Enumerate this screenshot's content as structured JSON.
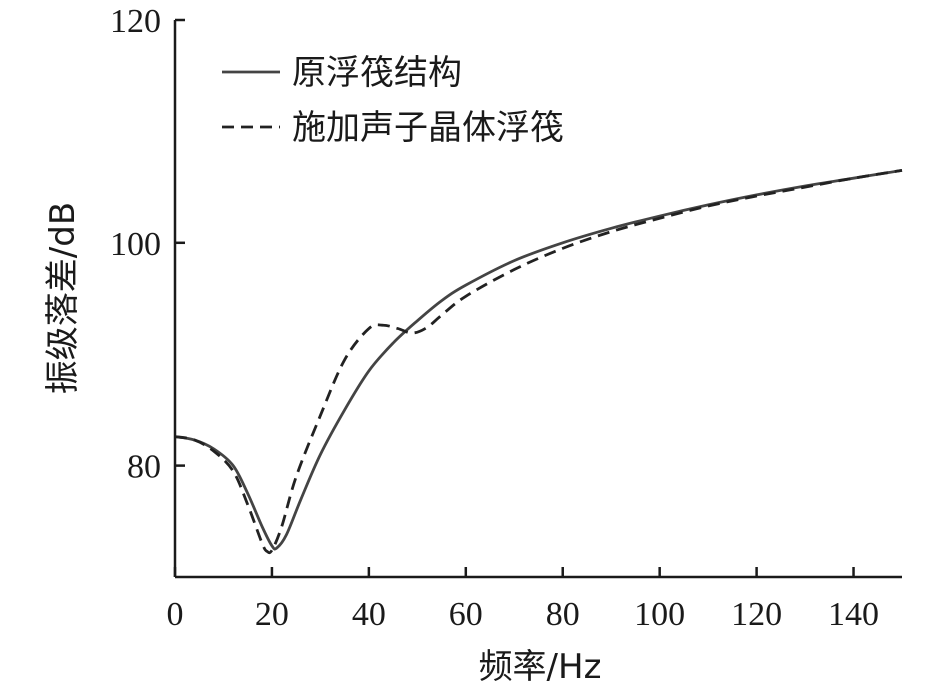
{
  "chart_data": {
    "type": "line",
    "xlabel": "频率/Hz",
    "ylabel": "振级落差/dB",
    "xlim": [
      0,
      150
    ],
    "ylim": [
      70,
      120
    ],
    "xticks": [
      "0",
      "20",
      "40",
      "60",
      "80",
      "100",
      "120",
      "140"
    ],
    "yticks": [
      "80",
      "100",
      "120"
    ],
    "grid": false,
    "legend_position": "top-left",
    "series": [
      {
        "name": "原浮筏结构",
        "style": "solid",
        "color": "#444444",
        "x": [
          0,
          4,
          8,
          12,
          15,
          18,
          20,
          21,
          23,
          26,
          30,
          35,
          40,
          45,
          50,
          55,
          60,
          70,
          80,
          90,
          100,
          110,
          120,
          130,
          140,
          150
        ],
        "y": [
          82.6,
          82.3,
          81.5,
          80.0,
          77.5,
          74.5,
          72.8,
          72.6,
          73.8,
          77.0,
          81.0,
          85.0,
          88.5,
          91.0,
          93.0,
          94.8,
          96.2,
          98.4,
          100.0,
          101.3,
          102.4,
          103.4,
          104.3,
          105.1,
          105.8,
          106.5
        ]
      },
      {
        "name": "施加声子晶体浮筏",
        "style": "dashed",
        "color": "#222222",
        "x": [
          0,
          4,
          8,
          12,
          15,
          18,
          19,
          20,
          22,
          25,
          30,
          35,
          40,
          43,
          46,
          49,
          52,
          55,
          60,
          70,
          80,
          90,
          100,
          110,
          120,
          130,
          140,
          150
        ],
        "y": [
          82.6,
          82.3,
          81.3,
          79.5,
          76.5,
          73.0,
          72.3,
          72.4,
          74.5,
          79.0,
          84.5,
          89.5,
          92.3,
          92.6,
          92.3,
          91.9,
          92.4,
          93.5,
          95.2,
          97.6,
          99.5,
          101.0,
          102.2,
          103.3,
          104.2,
          105.0,
          105.8,
          106.5
        ]
      }
    ]
  }
}
